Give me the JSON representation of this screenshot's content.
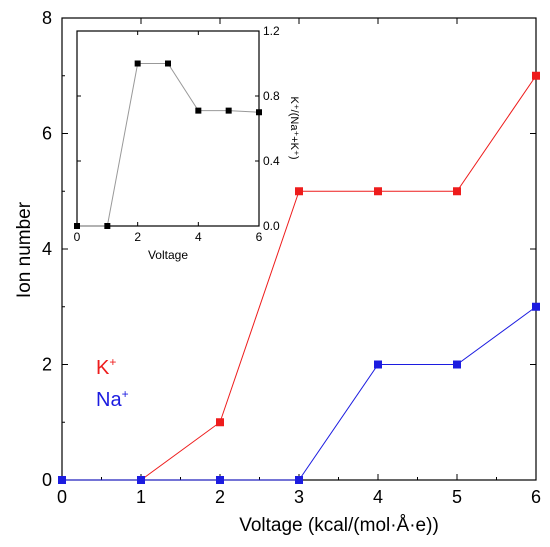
{
  "chart_data": [
    {
      "type": "line",
      "xlabel": "Voltage (kcal/(mol·Å·e))",
      "ylabel": "Ion number",
      "xlim": [
        0,
        6
      ],
      "ylim": [
        0,
        8
      ],
      "xticks": [
        "0",
        "1",
        "2",
        "3",
        "4",
        "5",
        "6"
      ],
      "yticks": [
        "0",
        "2",
        "4",
        "6",
        "8"
      ],
      "x": [
        0,
        1,
        2,
        3,
        4,
        5,
        6
      ],
      "series": [
        {
          "label_main": "K",
          "label_sup": "+",
          "color": "#ee1c1c",
          "values": [
            0,
            0,
            1,
            5,
            5,
            5,
            7
          ]
        },
        {
          "label_main": "Na",
          "label_sup": "+",
          "color": "#1c1ce0",
          "values": [
            0,
            0,
            0,
            0,
            2,
            2,
            3
          ]
        }
      ],
      "legend_placement": "lower-left"
    },
    {
      "type": "line",
      "xlabel": "Voltage",
      "ylabel": "K⁺/(Na⁺+K⁺)",
      "xlim": [
        0,
        6
      ],
      "ylim": [
        0,
        1.2
      ],
      "xticks": [
        "0",
        "2",
        "4",
        "6"
      ],
      "yticks": [
        "0.0",
        "0.4",
        "0.8",
        "1.2"
      ],
      "y_axis_side": "right",
      "x": [
        0,
        1,
        2,
        3,
        4,
        5,
        6
      ],
      "series": [
        {
          "color": "#000000",
          "line_color": "#999999",
          "values": [
            0,
            0,
            1.0,
            1.0,
            0.71,
            0.71,
            0.7
          ]
        }
      ]
    }
  ]
}
